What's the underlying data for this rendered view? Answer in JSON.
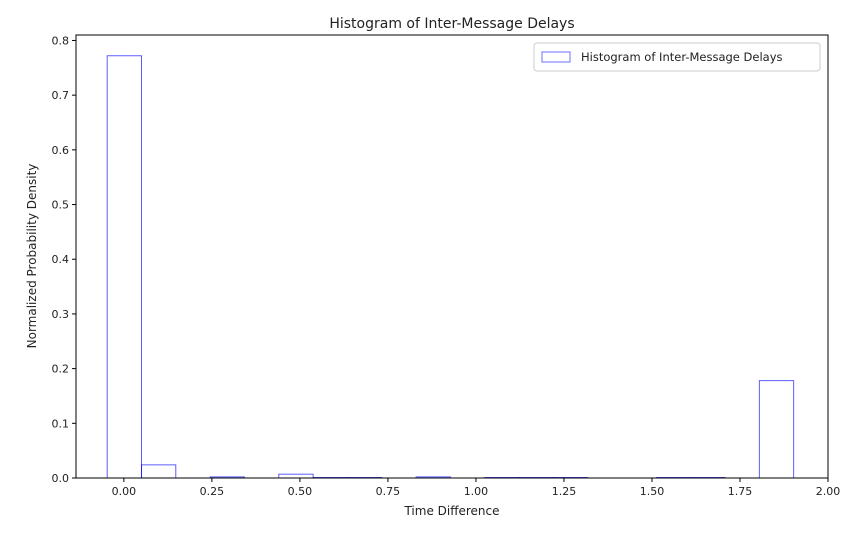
{
  "chart_data": {
    "type": "bar",
    "title": "Histogram of Inter-Message Delays",
    "xlabel": "Time Difference",
    "ylabel": "Normalized Probability Density",
    "xlim": [
      -0.136,
      2.0
    ],
    "ylim": [
      0,
      0.81
    ],
    "xticks": [
      0.0,
      0.25,
      0.5,
      0.75,
      1.0,
      1.25,
      1.5,
      1.75,
      2.0
    ],
    "xtick_labels": [
      "0.00",
      "0.25",
      "0.50",
      "0.75",
      "1.00",
      "1.25",
      "1.50",
      "1.75",
      "2.00"
    ],
    "yticks": [
      0.0,
      0.1,
      0.2,
      0.3,
      0.4,
      0.5,
      0.6,
      0.7,
      0.8
    ],
    "ytick_labels": [
      "0.0",
      "0.1",
      "0.2",
      "0.3",
      "0.4",
      "0.5",
      "0.6",
      "0.7",
      "0.8"
    ],
    "bin_edges": [
      -0.0475,
      0.05,
      0.1475,
      0.245,
      0.3425,
      0.44,
      0.5375,
      0.635,
      0.7325,
      0.83,
      0.9275,
      1.025,
      1.1225,
      1.22,
      1.3175,
      1.415,
      1.5125,
      1.61,
      1.7075,
      1.805,
      1.9025
    ],
    "values": [
      0.772,
      0.024,
      0.0,
      0.002,
      0.0,
      0.007,
      0.001,
      0.001,
      0.0,
      0.002,
      0.0,
      0.001,
      0.001,
      0.001,
      0.0,
      0.0,
      0.001,
      0.001,
      0.0,
      0.178
    ],
    "legend": {
      "placement": "top-right",
      "label": "Histogram of Inter-Message Delays"
    },
    "style": {
      "edge_color": "#0000ff",
      "fill": "none"
    },
    "grid": false
  }
}
